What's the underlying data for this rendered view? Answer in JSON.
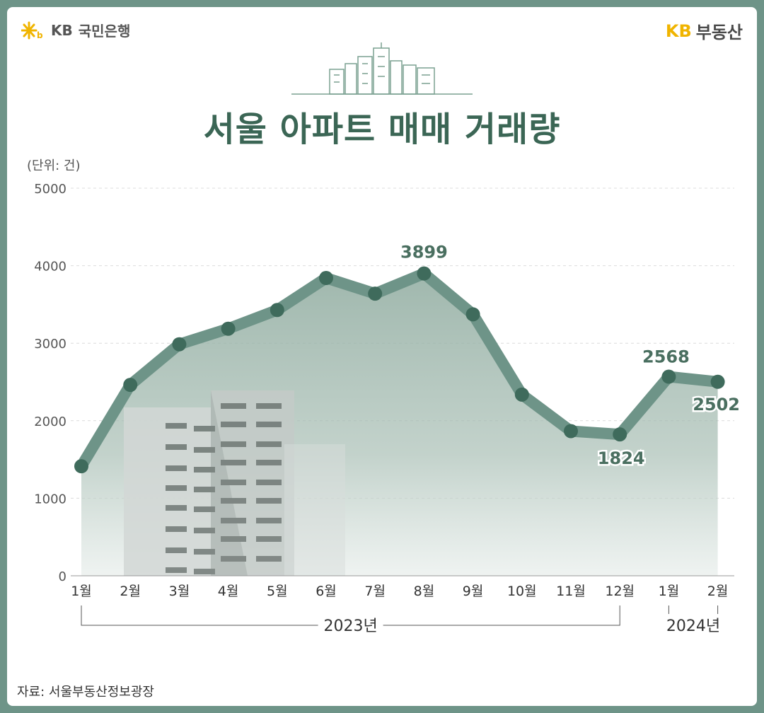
{
  "brand": {
    "bank_name": "국민은행",
    "bank_kb": "KB",
    "service_kb": "KB",
    "service_name": "부동산"
  },
  "title": "서울 아파트 매매 거래량",
  "source": "자료: 서울부동산정보광장",
  "chart_data": {
    "type": "area",
    "title": "서울 아파트 매매 거래량",
    "unit_label": "(단위: 건)",
    "ylim": [
      0,
      5000
    ],
    "yticks": [
      0,
      1000,
      2000,
      3000,
      4000,
      5000
    ],
    "categories": [
      "1월",
      "2월",
      "3월",
      "4월",
      "5월",
      "6월",
      "7월",
      "8월",
      "9월",
      "10월",
      "11월",
      "12월",
      "1월",
      "2월"
    ],
    "values": [
      1413,
      2462,
      2986,
      3187,
      3428,
      3841,
      3639,
      3899,
      3372,
      2337,
      1866,
      1824,
      2568,
      2502
    ],
    "data_labels": [
      {
        "index": 7,
        "text": "3899"
      },
      {
        "index": 11,
        "text": "1824"
      },
      {
        "index": 12,
        "text": "2568"
      },
      {
        "index": 13,
        "text": "2502"
      }
    ],
    "year_groups": [
      {
        "label": "2023년",
        "from": 0,
        "to": 11
      },
      {
        "label": "2024년",
        "from": 12,
        "to": 13
      }
    ],
    "grid": true,
    "colors": {
      "line": "#6e9488",
      "point": "#3f6b5c",
      "label": "#4a6f60",
      "fill": "#8aa89c"
    }
  }
}
